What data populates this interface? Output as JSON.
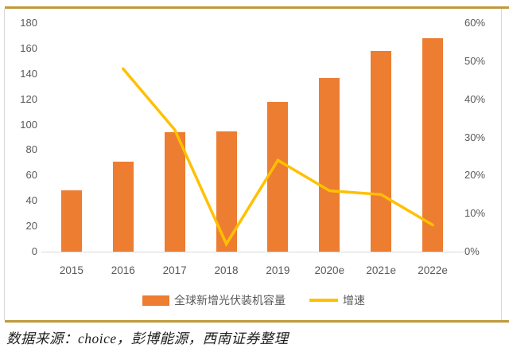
{
  "chart_data": {
    "type": "bar+line",
    "categories": [
      "2015",
      "2016",
      "2017",
      "2018",
      "2019",
      "2020e",
      "2021e",
      "2022e"
    ],
    "series": [
      {
        "name": "全球新增光伏装机容量",
        "type": "bar",
        "axis": "left",
        "color": "#ED7D31",
        "values": [
          48,
          71,
          94,
          95,
          118,
          137,
          158,
          168
        ]
      },
      {
        "name": "增速",
        "type": "line",
        "axis": "right",
        "color": "#FFC000",
        "unit": "%",
        "values": [
          null,
          48,
          32,
          2,
          24,
          16,
          15,
          7
        ]
      }
    ],
    "left_axis": {
      "min": 0,
      "max": 180,
      "step": 20
    },
    "right_axis": {
      "min": 0,
      "max": 60,
      "step": 10,
      "suffix": "%"
    },
    "grid": false,
    "legend_position": "bottom"
  },
  "source": {
    "text": "数据来源：choice，彭博能源，西南证券整理"
  },
  "colors": {
    "bar": "#ED7D31",
    "line": "#FFC000",
    "rule_gold": "#C0993B",
    "axis_text": "#595959",
    "frame_border": "#D9D9D9",
    "source_text": "#1F1F1F"
  }
}
